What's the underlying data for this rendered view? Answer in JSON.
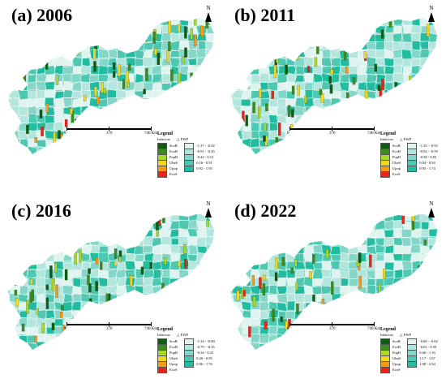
{
  "panels": [
    {
      "title": "(a) 2006",
      "ranges": [
        "-1.37 - -0.92",
        "-0.91 - -0.45",
        "-0.44 - 0.15",
        "0.16 - 0.91",
        "0.92 - 1.93"
      ],
      "weights": [
        2,
        3,
        3,
        3,
        1,
        1
      ]
    },
    {
      "title": "(b) 2011",
      "ranges": [
        "-1.35 - -0.93",
        "-0.92 - -0.59",
        "-0.58 - 0.03",
        "0.04 - 0.94",
        "0.95 - 1.74"
      ],
      "weights": [
        3,
        3,
        2,
        2,
        1,
        1
      ]
    },
    {
      "title": "(c) 2016",
      "ranges": [
        "-1.34 - -0.80",
        "-0.79 - -0.35",
        "-0.34 - 0.25",
        "0.26 - 0.95",
        "0.96 - 1.76"
      ],
      "weights": [
        3,
        3,
        2,
        2,
        1,
        1
      ]
    },
    {
      "title": "(d) 2022",
      "ranges": [
        "-0.69 - -0.02",
        "-0.01 - 0.59",
        "0.60 - 1.16",
        "1.17 - 1.67",
        "1.68 - 2.54"
      ],
      "weights": [
        2,
        2,
        2,
        1,
        1,
        4
      ]
    }
  ],
  "legend": {
    "title": "Legend",
    "infactors_label": "Infactors",
    "ewp_label": "△ EWP",
    "factors": [
      {
        "name": "ScoB",
        "color": "#0b5e12"
      },
      {
        "name": "EcoB",
        "color": "#3a8c1c"
      },
      {
        "name": "PopD",
        "color": "#a8d82a"
      },
      {
        "name": "UbaS",
        "color": "#f0d820"
      },
      {
        "name": "Upop",
        "color": "#f59a18"
      },
      {
        "name": "EcoS",
        "color": "#e8241c"
      }
    ],
    "ewp_colors": [
      "#dff3ef",
      "#b2e5dc",
      "#84d6c8",
      "#4fc8b2",
      "#22bca0"
    ]
  },
  "scale": {
    "labels": [
      "0",
      "370",
      "740 Km"
    ]
  },
  "north_label": "N"
}
